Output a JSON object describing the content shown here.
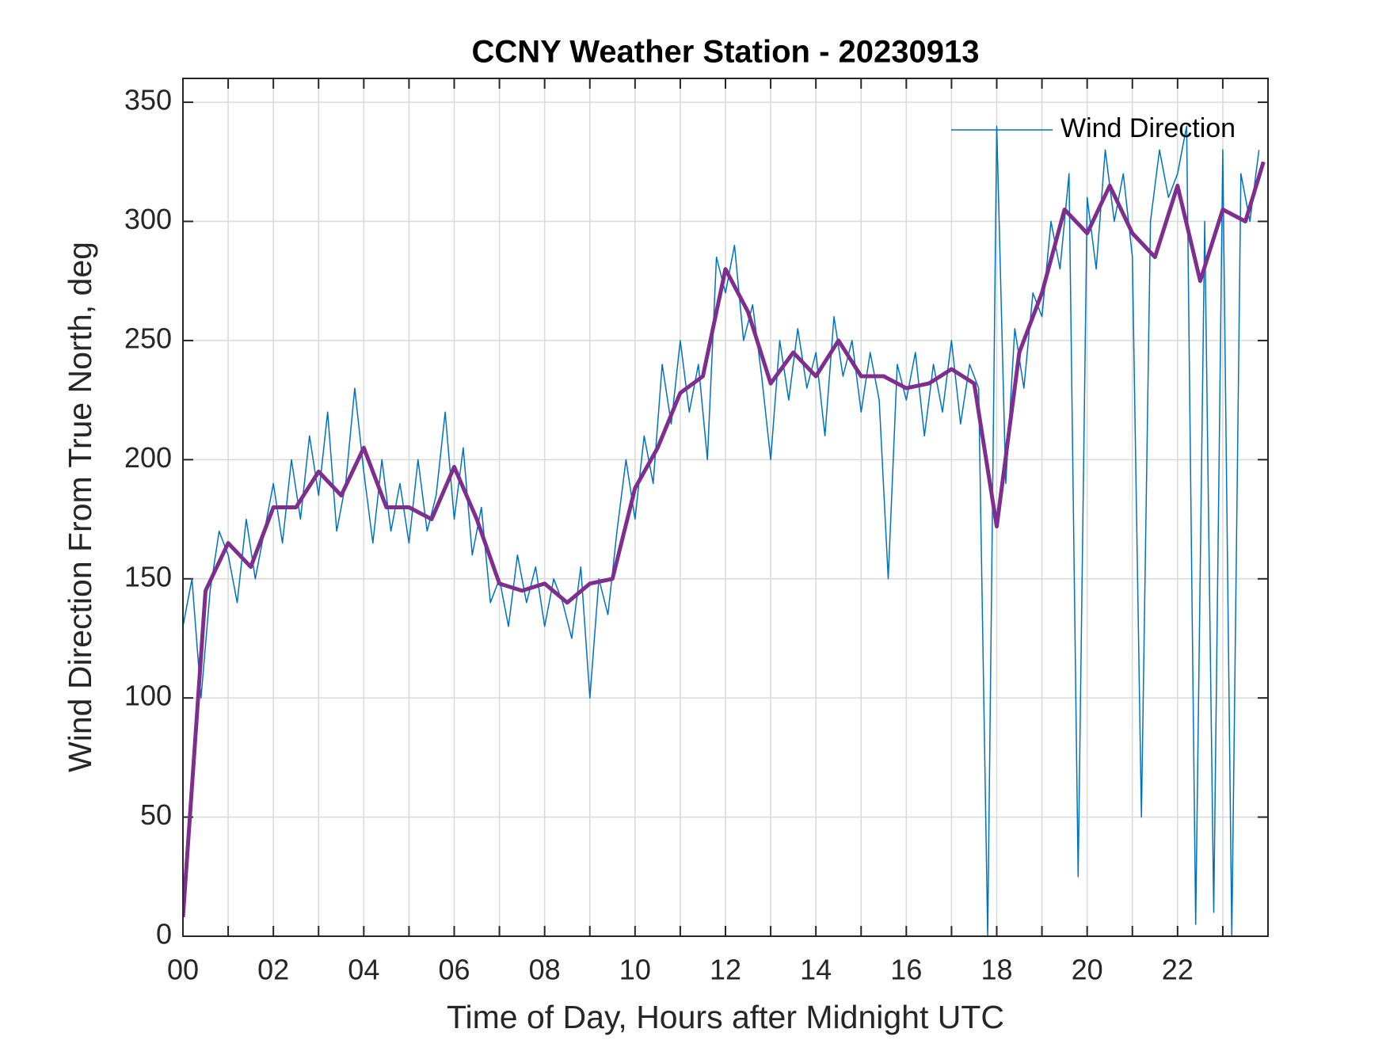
{
  "chart_data": {
    "type": "line",
    "title": "CCNY Weather Station - 20230913",
    "xlabel": "Time of Day, Hours after Midnight UTC",
    "ylabel": "Wind Direction From True North, deg",
    "xlim": [
      0,
      24
    ],
    "ylim": [
      0,
      360
    ],
    "xticks": [
      {
        "value": 0,
        "label": "00"
      },
      {
        "value": 2,
        "label": "02"
      },
      {
        "value": 4,
        "label": "04"
      },
      {
        "value": 6,
        "label": "06"
      },
      {
        "value": 8,
        "label": "08"
      },
      {
        "value": 10,
        "label": "10"
      },
      {
        "value": 12,
        "label": "12"
      },
      {
        "value": 14,
        "label": "14"
      },
      {
        "value": 16,
        "label": "16"
      },
      {
        "value": 18,
        "label": "18"
      },
      {
        "value": 20,
        "label": "20"
      },
      {
        "value": 22,
        "label": "22"
      }
    ],
    "xminorticks": [
      1,
      3,
      5,
      7,
      9,
      11,
      13,
      15,
      17,
      19,
      21,
      23
    ],
    "yticks": [
      0,
      50,
      100,
      150,
      200,
      250,
      300,
      350
    ],
    "grid": true,
    "legend": "northeast",
    "series": [
      {
        "name": "Wind Direction",
        "color": "#0072bd",
        "width": 1.5,
        "x": [
          0,
          0.2,
          0.4,
          0.6,
          0.8,
          1,
          1.2,
          1.4,
          1.6,
          1.8,
          2,
          2.2,
          2.4,
          2.6,
          2.8,
          3,
          3.2,
          3.4,
          3.6,
          3.8,
          4,
          4.2,
          4.4,
          4.6,
          4.8,
          5,
          5.2,
          5.4,
          5.6,
          5.8,
          6,
          6.2,
          6.4,
          6.6,
          6.8,
          7,
          7.2,
          7.4,
          7.6,
          7.8,
          8,
          8.2,
          8.4,
          8.6,
          8.8,
          9,
          9.2,
          9.4,
          9.6,
          9.8,
          10,
          10.2,
          10.4,
          10.6,
          10.8,
          11,
          11.2,
          11.4,
          11.6,
          11.8,
          12,
          12.2,
          12.4,
          12.6,
          12.8,
          13,
          13.2,
          13.4,
          13.6,
          13.8,
          14,
          14.2,
          14.4,
          14.6,
          14.8,
          15,
          15.2,
          15.4,
          15.6,
          15.8,
          16,
          16.2,
          16.4,
          16.6,
          16.8,
          17,
          17.2,
          17.4,
          17.6,
          17.8,
          18,
          18.2,
          18.4,
          18.6,
          18.8,
          19,
          19.2,
          19.4,
          19.6,
          19.8,
          20,
          20.2,
          20.4,
          20.6,
          20.8,
          21,
          21.2,
          21.4,
          21.6,
          21.8,
          22,
          22.2,
          22.4,
          22.6,
          22.8,
          23,
          23.2,
          23.4,
          23.6,
          23.8
        ],
        "values": [
          130,
          150,
          100,
          145,
          170,
          160,
          140,
          175,
          150,
          170,
          190,
          165,
          200,
          175,
          210,
          185,
          220,
          170,
          190,
          230,
          195,
          165,
          200,
          170,
          190,
          165,
          200,
          170,
          185,
          220,
          175,
          205,
          160,
          180,
          140,
          150,
          130,
          160,
          140,
          155,
          130,
          150,
          140,
          125,
          155,
          100,
          150,
          135,
          170,
          200,
          175,
          210,
          190,
          240,
          215,
          250,
          220,
          240,
          200,
          285,
          270,
          290,
          250,
          265,
          235,
          200,
          250,
          225,
          255,
          230,
          245,
          210,
          260,
          235,
          250,
          220,
          245,
          225,
          150,
          240,
          225,
          245,
          210,
          240,
          220,
          250,
          215,
          240,
          230,
          0,
          340,
          190,
          255,
          230,
          270,
          260,
          300,
          280,
          320,
          25,
          310,
          280,
          330,
          300,
          320,
          285,
          50,
          300,
          330,
          310,
          320,
          340,
          5,
          300,
          10,
          330,
          0,
          320,
          300,
          330
        ]
      },
      {
        "color": "#7e2f8e",
        "width": 5,
        "x": [
          0,
          0.5,
          1,
          1.5,
          2,
          2.5,
          3,
          3.5,
          4,
          4.5,
          5,
          5.5,
          6,
          6.5,
          7,
          7.5,
          8,
          8.5,
          9,
          9.5,
          10,
          10.5,
          11,
          11.5,
          12,
          12.5,
          13,
          13.5,
          14,
          14.5,
          15,
          15.5,
          16,
          16.5,
          17,
          17.5,
          18,
          18.5,
          19,
          19.5,
          20,
          20.5,
          21,
          21.5,
          22,
          22.5,
          23,
          23.5,
          23.9
        ],
        "values": [
          8,
          145,
          165,
          155,
          180,
          180,
          195,
          185,
          205,
          180,
          180,
          175,
          197,
          175,
          148,
          145,
          148,
          140,
          148,
          150,
          188,
          205,
          228,
          235,
          280,
          262,
          232,
          245,
          235,
          250,
          235,
          235,
          230,
          232,
          238,
          232,
          172,
          245,
          270,
          305,
          295,
          315,
          295,
          285,
          315,
          275,
          305,
          300,
          325
        ]
      }
    ]
  }
}
